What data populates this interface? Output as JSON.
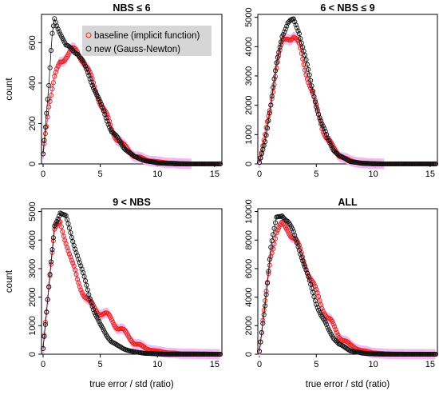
{
  "colors": {
    "baseline_point": "#e8231b",
    "baseline_line": "#b3701a",
    "new_point": "#111111",
    "new_line": "#111111",
    "error_band": "#f2b8f2",
    "legend_bg": "#d6d6d6",
    "background": "#ffffff"
  },
  "legend": {
    "entries": [
      "baseline (implicit function)",
      "new (Gauss-Newton)"
    ],
    "placement": "top-right of first panel",
    "marker": "open circle"
  },
  "chart_data": [
    {
      "type": "scatter",
      "title": "NBS ≤ 6",
      "xlabel": "",
      "ylabel": "count",
      "xlim": [
        0,
        15.5
      ],
      "ylim": [
        0,
        740
      ],
      "xticks": [
        "0",
        "5",
        "10",
        "15"
      ],
      "yticks": [
        "0",
        "200",
        "400",
        "600"
      ],
      "ytick_values": [
        0,
        200,
        400,
        600
      ],
      "grid": false,
      "series": [
        {
          "name": "baseline (implicit function)",
          "x": [
            0,
            0.5,
            1,
            1.5,
            2,
            2.5,
            3,
            3.5,
            4,
            4.5,
            5,
            5.5,
            6,
            7,
            8,
            9,
            10,
            11,
            12,
            13,
            15.5
          ],
          "y": [
            50,
            300,
            420,
            500,
            540,
            560,
            550,
            520,
            450,
            380,
            310,
            240,
            170,
            90,
            40,
            20,
            10,
            5,
            2,
            0,
            0
          ]
        },
        {
          "name": "new (Gauss-Newton)",
          "x": [
            0,
            0.5,
            0.8,
            1,
            1.2,
            1.5,
            2,
            2.5,
            3,
            3.5,
            4,
            4.5,
            5,
            5.5,
            6,
            7,
            8,
            9,
            10,
            11,
            12,
            13,
            15.5
          ],
          "y": [
            50,
            380,
            640,
            720,
            690,
            650,
            580,
            570,
            550,
            500,
            440,
            370,
            300,
            230,
            165,
            85,
            35,
            15,
            5,
            2,
            0,
            0,
            0
          ]
        }
      ]
    },
    {
      "type": "scatter",
      "title": "6 < NBS ≤ 9",
      "xlabel": "",
      "ylabel": "",
      "xlim": [
        0,
        15.5
      ],
      "ylim": [
        0,
        5100
      ],
      "xticks": [
        "0",
        "5",
        "10",
        "15"
      ],
      "yticks": [
        "0",
        "1000",
        "2000",
        "3000",
        "4000",
        "5000"
      ],
      "ytick_values": [
        0,
        1000,
        2000,
        3000,
        4000,
        5000
      ],
      "grid": false,
      "series": [
        {
          "name": "baseline (implicit function)",
          "x": [
            0,
            0.5,
            1,
            1.5,
            2,
            2.5,
            3,
            3.5,
            4,
            4.5,
            5,
            5.5,
            6,
            6.5,
            7,
            8,
            9,
            10,
            11,
            12,
            15.5
          ],
          "y": [
            50,
            900,
            2100,
            3300,
            4100,
            4350,
            4350,
            4000,
            3300,
            2600,
            1900,
            1300,
            850,
            520,
            300,
            100,
            30,
            10,
            0,
            0,
            0
          ]
        },
        {
          "name": "new (Gauss-Newton)",
          "x": [
            0,
            0.5,
            1,
            1.5,
            2,
            2.5,
            3,
            3.5,
            4,
            4.5,
            5,
            5.5,
            6,
            6.5,
            7,
            8,
            9,
            10,
            11,
            12,
            15.5
          ],
          "y": [
            50,
            800,
            2000,
            3400,
            4400,
            4800,
            4900,
            4500,
            3700,
            2800,
            2000,
            1350,
            850,
            500,
            280,
            80,
            20,
            5,
            0,
            0,
            0
          ]
        }
      ]
    },
    {
      "type": "scatter",
      "title": "9 < NBS",
      "xlabel": "true error / std (ratio)",
      "ylabel": "count",
      "xlim": [
        0,
        15.5
      ],
      "ylim": [
        0,
        5100
      ],
      "xticks": [
        "0",
        "5",
        "10",
        "15"
      ],
      "yticks": [
        "0",
        "1000",
        "2000",
        "3000",
        "4000",
        "5000"
      ],
      "ytick_values": [
        0,
        1000,
        2000,
        3000,
        4000,
        5000
      ],
      "grid": false,
      "series": [
        {
          "name": "baseline (implicit function)",
          "x": [
            0,
            0.5,
            1,
            1.5,
            2,
            2.5,
            3,
            3.5,
            4,
            4.5,
            5,
            5.5,
            6,
            6.5,
            7,
            7.5,
            8,
            9,
            10,
            11,
            12,
            15.5
          ],
          "y": [
            200,
            2500,
            4300,
            4600,
            4000,
            3200,
            2600,
            2200,
            1800,
            1600,
            1500,
            1350,
            1200,
            1000,
            800,
            600,
            400,
            200,
            100,
            50,
            20,
            0
          ]
        },
        {
          "name": "new (Gauss-Newton)",
          "x": [
            0,
            0.5,
            1,
            1.5,
            2,
            2.5,
            3,
            3.5,
            4,
            4.5,
            5,
            5.5,
            6,
            6.5,
            7,
            7.5,
            8,
            9,
            10,
            11,
            12,
            15.5
          ],
          "y": [
            200,
            2300,
            4500,
            5000,
            4800,
            4100,
            3500,
            2800,
            2100,
            1500,
            1000,
            700,
            450,
            300,
            200,
            130,
            80,
            30,
            10,
            0,
            0,
            0
          ]
        }
      ]
    },
    {
      "type": "scatter",
      "title": "ALL",
      "xlabel": "true error / std (ratio)",
      "ylabel": "",
      "xlim": [
        0,
        15.5
      ],
      "ylim": [
        0,
        10200
      ],
      "xticks": [
        "0",
        "5",
        "10",
        "15"
      ],
      "yticks": [
        "0",
        "2000",
        "4000",
        "6000",
        "8000",
        "10000"
      ],
      "ytick_values": [
        0,
        2000,
        4000,
        6000,
        8000,
        10000
      ],
      "grid": false,
      "series": [
        {
          "name": "baseline (implicit function)",
          "x": [
            0,
            0.5,
            1,
            1.5,
            2,
            2.5,
            3,
            3.5,
            4,
            4.5,
            5,
            5.5,
            6,
            6.5,
            7,
            8,
            9,
            10,
            11,
            12,
            15.5
          ],
          "y": [
            200,
            3500,
            7000,
            8600,
            9000,
            8800,
            8200,
            7400,
            6400,
            5300,
            4300,
            3400,
            2600,
            1900,
            1300,
            600,
            250,
            100,
            30,
            10,
            0
          ]
        },
        {
          "name": "new (Gauss-Newton)",
          "x": [
            0,
            0.5,
            1,
            1.5,
            2,
            2.5,
            3,
            3.5,
            4,
            4.5,
            5,
            5.5,
            6,
            6.5,
            7,
            8,
            9,
            10,
            11,
            12,
            15.5
          ],
          "y": [
            200,
            3500,
            7500,
            9500,
            9800,
            9300,
            8500,
            7400,
            6100,
            4800,
            3600,
            2600,
            1800,
            1200,
            700,
            250,
            80,
            20,
            5,
            0,
            0
          ]
        }
      ]
    }
  ]
}
